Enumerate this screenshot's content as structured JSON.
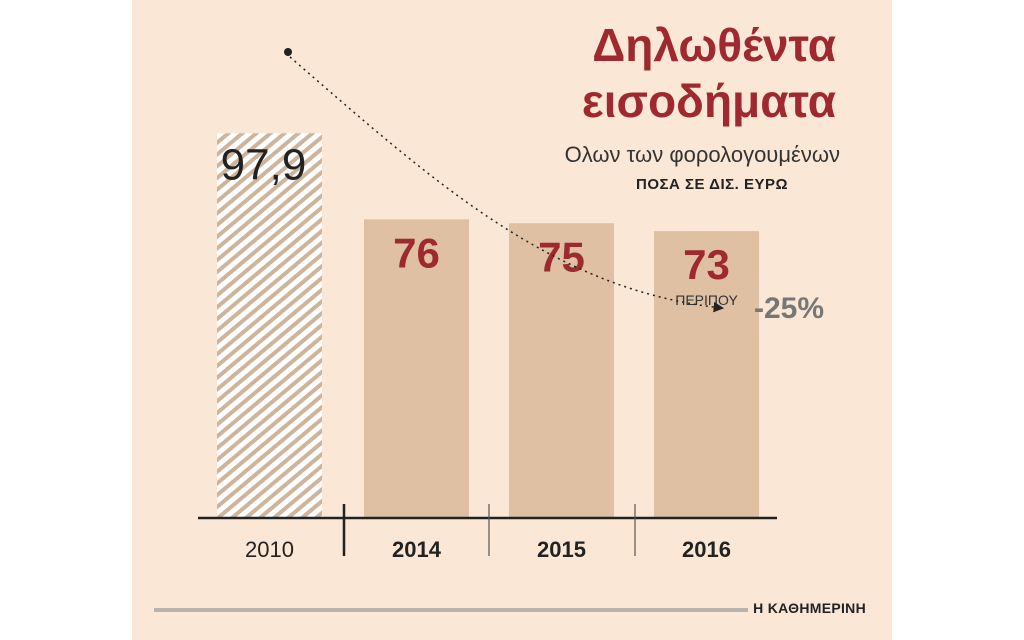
{
  "colors": {
    "background": "#fbe7d6",
    "bar": "#dfc0a3",
    "hatch_line": "#cdb49c",
    "title": "#9e2a2f",
    "value_dark_red": "#9e2a2f",
    "value_black": "#222222",
    "annotation_grey": "#777777",
    "footer_line": "#b9b3ae"
  },
  "header": {
    "title_line1": "Δηλωθέντα",
    "title_line2": "εισοδήματα",
    "subtitle": "Ολων των φορολογουμένων",
    "unit": "ΠΟΣΑ ΣΕ ΔΙΣ. ΕΥΡΩ"
  },
  "chart_data": {
    "type": "bar",
    "title": "Δηλωθέντα εισοδήματα",
    "subtitle": "Ολων των φορολογουμένων",
    "ylabel": "ΠΟΣΑ ΣΕ ΔΙΣ. ΕΥΡΩ",
    "categories": [
      "2010",
      "2014",
      "2015",
      "2016"
    ],
    "values": [
      97.9,
      76,
      75,
      73
    ],
    "value_labels": [
      "97,9",
      "76",
      "75",
      "73"
    ],
    "value_notes": [
      "",
      "",
      "",
      "ΠΕΡΙΠΟΥ"
    ],
    "bar_styles": [
      "hatched",
      "solid",
      "solid",
      "solid"
    ],
    "bold_categories": [
      false,
      true,
      true,
      true
    ],
    "ylim": [
      0,
      100
    ],
    "annotations": [
      {
        "text": "-25%",
        "type": "dotted-arrow",
        "from": "2010",
        "to": "2016"
      }
    ]
  },
  "footer": {
    "source": "Η ΚΑΘΗΜΕΡΙΝΗ"
  }
}
